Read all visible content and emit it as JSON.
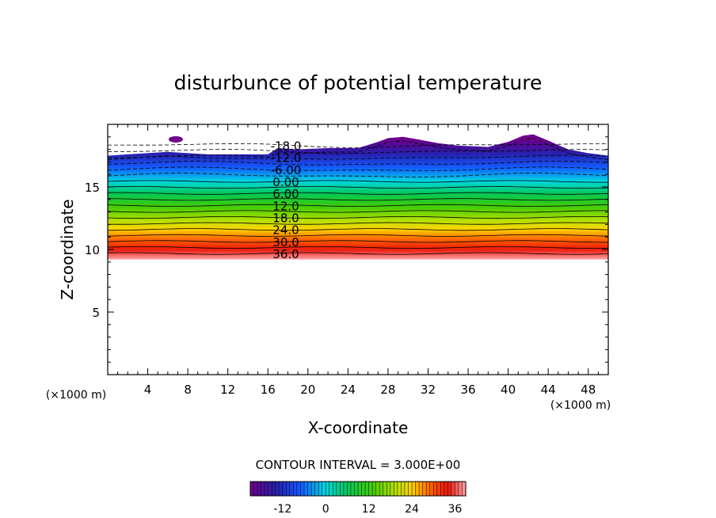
{
  "chart_data": {
    "type": "contour",
    "title": "disturbunce of potential temperature",
    "xlabel": "X-coordinate",
    "ylabel": "Z-coordinate",
    "x_unit": "(×1000 m)",
    "y_unit": "(×1000 m)",
    "xlim": [
      0,
      50
    ],
    "ylim": [
      0,
      20
    ],
    "x_ticks": [
      "4",
      "8",
      "12",
      "16",
      "20",
      "24",
      "28",
      "32",
      "36",
      "40",
      "44",
      "48"
    ],
    "y_ticks": [
      "5",
      "10",
      "15"
    ],
    "contour_interval_text": "CONTOUR INTERVAL = 3.000E+00",
    "contour_interval": 3.0,
    "value_range": [
      -21,
      39
    ],
    "contour_labels": [
      "-18.0",
      "-12.0",
      "-6.00",
      "0.00",
      "6.00",
      "12.0",
      "18.0",
      "24.0",
      "30.0",
      "36.0"
    ],
    "field_bottom_z": 9.2,
    "field_top_z_profile": {
      "x": [
        0,
        2,
        6,
        10,
        14,
        16,
        17,
        19,
        22,
        25,
        27,
        28,
        29.5,
        31,
        33,
        35,
        38,
        40,
        41.5,
        42.5,
        44,
        46,
        48,
        50
      ],
      "z": [
        17.5,
        17.6,
        17.8,
        17.6,
        17.6,
        17.6,
        18.1,
        18.0,
        18.1,
        18.1,
        18.6,
        18.9,
        19.0,
        18.8,
        18.5,
        18.3,
        18.2,
        18.6,
        19.1,
        19.2,
        18.7,
        18.0,
        17.7,
        17.5
      ]
    },
    "isolated_blob": {
      "x": 6.8,
      "z": 18.8
    },
    "colorbar": {
      "tick_labels": [
        "-12",
        "0",
        "12",
        "24",
        "36"
      ],
      "tick_values": [
        -12,
        0,
        12,
        24,
        36
      ],
      "range": [
        -21,
        39
      ]
    }
  }
}
